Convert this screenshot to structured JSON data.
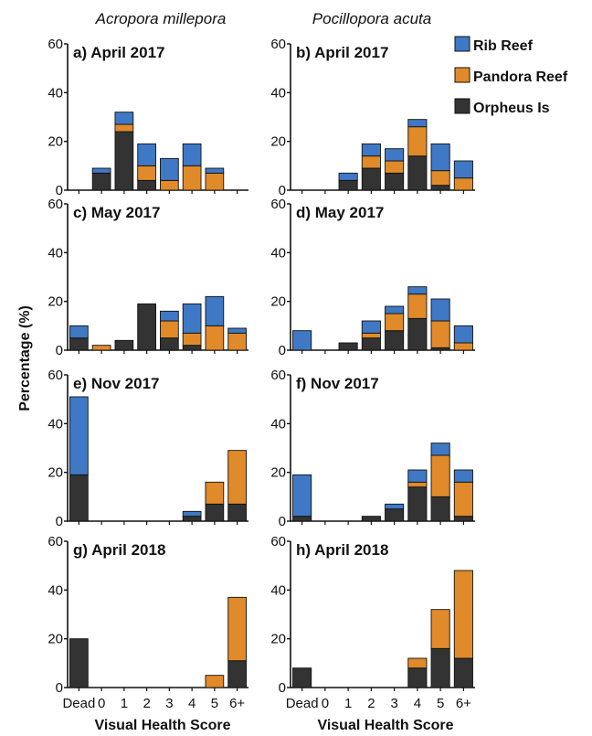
{
  "colors": {
    "Rib Reef": "#3f78c4",
    "Pandora Reef": "#e08a2a",
    "Orpheus Is": "#333333"
  },
  "chart_data": {
    "type": "bar",
    "stacked": true,
    "column_titles": [
      "Acropora millepora",
      "Pocillopora acuta"
    ],
    "ylabel": "Percentage (%)",
    "xlabel": "Visual Health Score",
    "categories": [
      "Dead",
      "0",
      "1",
      "2",
      "3",
      "4",
      "5",
      "6+"
    ],
    "yticks": [
      0,
      20,
      40,
      60
    ],
    "ylim": [
      0,
      60
    ],
    "legend": [
      "Rib Reef",
      "Pandora Reef",
      "Orpheus Is"
    ],
    "legend_placement": "top-right",
    "stack_order": [
      "Orpheus Is",
      "Pandora Reef",
      "Rib Reef"
    ],
    "panels": [
      {
        "title": "a) April 2017",
        "column": 0,
        "row": 0,
        "series": [
          {
            "name": "Orpheus Is",
            "values": [
              0,
              7,
              24,
              4,
              0,
              0,
              0,
              0
            ]
          },
          {
            "name": "Pandora Reef",
            "values": [
              0,
              0,
              3,
              6,
              4,
              10,
              7,
              0
            ]
          },
          {
            "name": "Rib Reef",
            "values": [
              0,
              2,
              5,
              9,
              9,
              9,
              2,
              0
            ]
          }
        ]
      },
      {
        "title": "b) April 2017",
        "column": 1,
        "row": 0,
        "series": [
          {
            "name": "Orpheus Is",
            "values": [
              0,
              0,
              4,
              9,
              7,
              14,
              2,
              0
            ]
          },
          {
            "name": "Pandora Reef",
            "values": [
              0,
              0,
              0,
              5,
              5,
              12,
              6,
              5
            ]
          },
          {
            "name": "Rib Reef",
            "values": [
              0,
              0,
              3,
              5,
              5,
              3,
              11,
              7
            ]
          }
        ]
      },
      {
        "title": "c) May 2017",
        "column": 0,
        "row": 1,
        "series": [
          {
            "name": "Orpheus Is",
            "values": [
              5,
              0,
              4,
              19,
              5,
              2,
              0,
              0
            ]
          },
          {
            "name": "Pandora Reef",
            "values": [
              0,
              2,
              0,
              0,
              7,
              5,
              10,
              7
            ]
          },
          {
            "name": "Rib Reef",
            "values": [
              5,
              0,
              0,
              0,
              4,
              12,
              12,
              2
            ]
          }
        ]
      },
      {
        "title": "d) May 2017",
        "column": 1,
        "row": 1,
        "series": [
          {
            "name": "Orpheus Is",
            "values": [
              0,
              0,
              3,
              5,
              8,
              13,
              1,
              0
            ]
          },
          {
            "name": "Pandora Reef",
            "values": [
              0,
              0,
              0,
              2,
              7,
              10,
              11,
              3
            ]
          },
          {
            "name": "Rib Reef",
            "values": [
              8,
              0,
              0,
              5,
              3,
              3,
              9,
              7
            ]
          }
        ]
      },
      {
        "title": "e) Nov 2017",
        "column": 0,
        "row": 2,
        "series": [
          {
            "name": "Orpheus Is",
            "values": [
              19,
              0,
              0,
              0,
              0,
              2,
              7,
              7
            ]
          },
          {
            "name": "Pandora Reef",
            "values": [
              0,
              0,
              0,
              0,
              0,
              0,
              9,
              22
            ]
          },
          {
            "name": "Rib Reef",
            "values": [
              32,
              0,
              0,
              0,
              0,
              2,
              0,
              0
            ]
          }
        ]
      },
      {
        "title": "f) Nov 2017",
        "column": 1,
        "row": 2,
        "series": [
          {
            "name": "Orpheus Is",
            "values": [
              2,
              0,
              0,
              2,
              5,
              14,
              10,
              2
            ]
          },
          {
            "name": "Pandora Reef",
            "values": [
              0,
              0,
              0,
              0,
              0,
              2,
              17,
              14
            ]
          },
          {
            "name": "Rib Reef",
            "values": [
              17,
              0,
              0,
              0,
              2,
              5,
              5,
              5
            ]
          }
        ]
      },
      {
        "title": "g) April 2018",
        "column": 0,
        "row": 3,
        "series": [
          {
            "name": "Orpheus Is",
            "values": [
              20,
              0,
              0,
              0,
              0,
              0,
              0,
              11
            ]
          },
          {
            "name": "Pandora Reef",
            "values": [
              0,
              0,
              0,
              0,
              0,
              0,
              5,
              26
            ]
          },
          {
            "name": "Rib Reef",
            "values": [
              0,
              0,
              0,
              0,
              0,
              0,
              0,
              0
            ]
          }
        ]
      },
      {
        "title": "h) April 2018",
        "column": 1,
        "row": 3,
        "series": [
          {
            "name": "Orpheus Is",
            "values": [
              8,
              0,
              0,
              0,
              0,
              8,
              16,
              12
            ]
          },
          {
            "name": "Pandora Reef",
            "values": [
              0,
              0,
              0,
              0,
              0,
              4,
              16,
              36
            ]
          },
          {
            "name": "Rib Reef",
            "values": [
              0,
              0,
              0,
              0,
              0,
              0,
              0,
              0
            ]
          }
        ]
      }
    ]
  }
}
